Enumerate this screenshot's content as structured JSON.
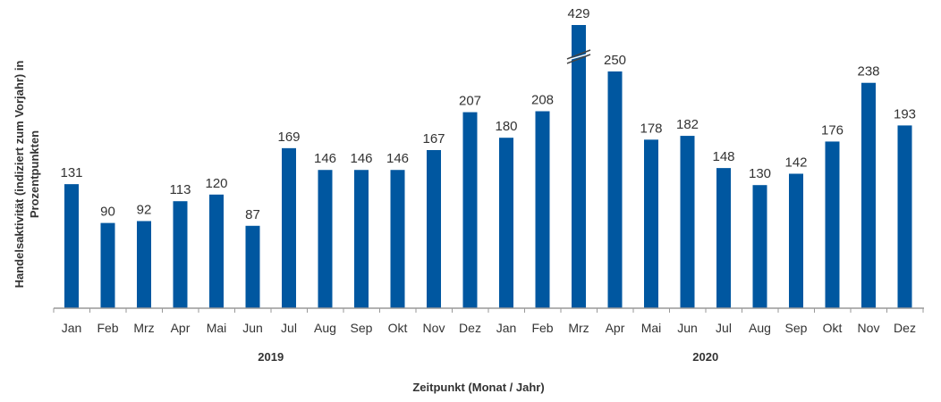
{
  "chart_data": {
    "type": "bar",
    "categories": [
      "Jan",
      "Feb",
      "Mrz",
      "Apr",
      "Mai",
      "Jun",
      "Jul",
      "Aug",
      "Sep",
      "Okt",
      "Nov",
      "Dez",
      "Jan",
      "Feb",
      "Mrz",
      "Apr",
      "Mai",
      "Jun",
      "Jul",
      "Aug",
      "Sep",
      "Okt",
      "Nov",
      "Dez"
    ],
    "years": [
      {
        "label": "2019",
        "start": 0,
        "end": 11
      },
      {
        "label": "2020",
        "start": 12,
        "end": 23
      }
    ],
    "values": [
      131,
      90,
      92,
      113,
      120,
      87,
      169,
      146,
      146,
      146,
      167,
      207,
      180,
      208,
      429,
      250,
      178,
      182,
      148,
      130,
      142,
      176,
      238,
      193
    ],
    "truncated_index": 14,
    "xlabel": "Zeitpunkt (Monat / Jahr)",
    "ylabel_lines": [
      "Handelsaktivität (indiziert zum Vorjahr) in",
      "Prozentpunkten"
    ],
    "bar_color": "#0057A0",
    "grid": false
  }
}
